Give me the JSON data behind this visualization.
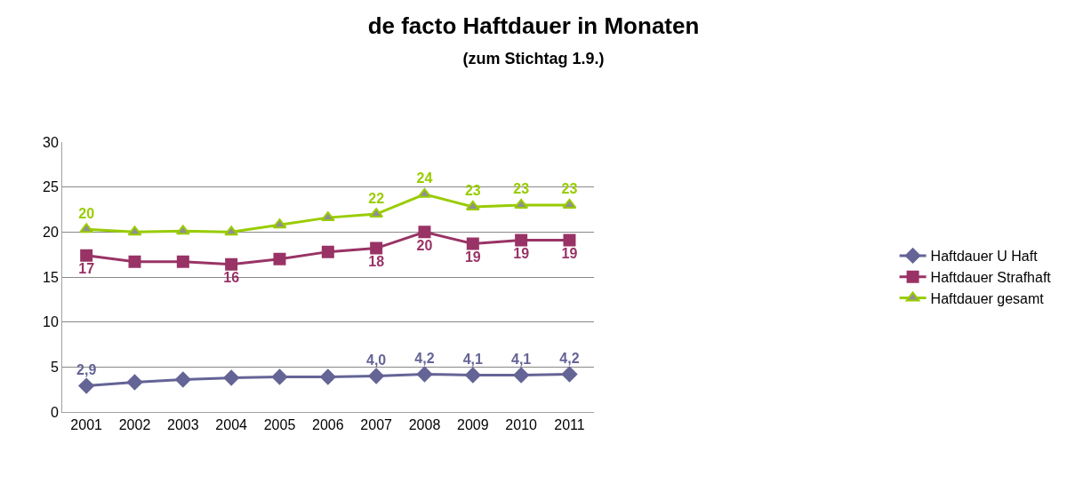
{
  "chart_data": {
    "type": "line",
    "title": "de facto Haftdauer in Monaten",
    "subtitle": "(zum Stichtag 1.9.)",
    "categories": [
      "2001",
      "2002",
      "2003",
      "2004",
      "2005",
      "2006",
      "2007",
      "2008",
      "2009",
      "2010",
      "2011"
    ],
    "series": [
      {
        "name": "Haftdauer U Haft",
        "color": "#646496",
        "marker": "diamond",
        "values": [
          2.9,
          3.3,
          3.6,
          3.8,
          3.9,
          3.9,
          4.0,
          4.2,
          4.1,
          4.1,
          4.2
        ],
        "value_labels": [
          "2,9",
          null,
          null,
          null,
          null,
          null,
          "4,0",
          "4,2",
          "4,1",
          "4,1",
          "4,2"
        ]
      },
      {
        "name": "Haftdauer Strafhaft",
        "color": "#993366",
        "marker": "square",
        "values": [
          17.4,
          16.7,
          16.7,
          16.4,
          17.0,
          17.8,
          18.2,
          20.0,
          18.7,
          19.1,
          19.1
        ],
        "value_labels": [
          "17",
          null,
          null,
          "16",
          null,
          null,
          "18",
          "20",
          "19",
          "19",
          "19"
        ]
      },
      {
        "name": "Haftdauer gesamt",
        "color": "#99cc00",
        "marker": "triangle",
        "values": [
          20.3,
          20.0,
          20.1,
          20.0,
          20.8,
          21.6,
          22.0,
          24.2,
          22.8,
          23.0,
          23.0
        ],
        "value_labels": [
          "20",
          null,
          null,
          null,
          null,
          null,
          "22",
          "24",
          "23",
          "23",
          "23"
        ]
      }
    ],
    "ylim": [
      0,
      30
    ],
    "yticks": [
      0,
      5,
      10,
      15,
      20,
      25,
      30
    ],
    "grid": "y",
    "legend": "right"
  }
}
